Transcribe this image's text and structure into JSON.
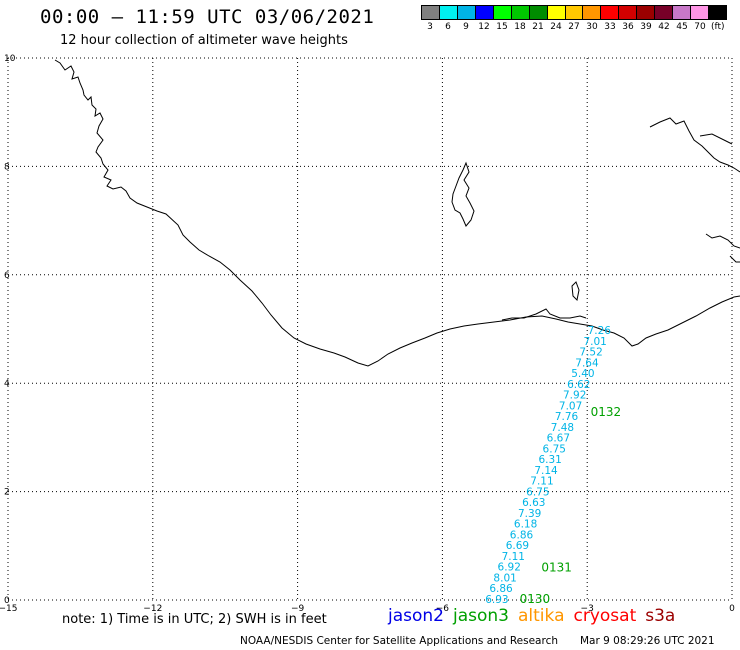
{
  "header": {
    "title": "00:00 – 11:59 UTC 03/06/2021",
    "subtitle": "12 hour collection of altimeter wave heights"
  },
  "legend": {
    "unit": "(ft)",
    "bins": [
      {
        "label": "3",
        "color": "#808080"
      },
      {
        "label": "6",
        "color": "#00f0f0"
      },
      {
        "label": "9",
        "color": "#00b4e6"
      },
      {
        "label": "12",
        "color": "#0000ff"
      },
      {
        "label": "15",
        "color": "#00ff00"
      },
      {
        "label": "18",
        "color": "#00c800"
      },
      {
        "label": "21",
        "color": "#008c00"
      },
      {
        "label": "24",
        "color": "#ffff00"
      },
      {
        "label": "27",
        "color": "#ffc800"
      },
      {
        "label": "30",
        "color": "#ff9600"
      },
      {
        "label": "33",
        "color": "#ff0000"
      },
      {
        "label": "36",
        "color": "#d20000"
      },
      {
        "label": "39",
        "color": "#9b0000"
      },
      {
        "label": "42",
        "color": "#780028"
      },
      {
        "label": "45",
        "color": "#c878c8"
      },
      {
        "label": "70",
        "color": "#ff96e6"
      },
      {
        "label": "",
        "color": "#000000"
      }
    ]
  },
  "axes": {
    "x_ticks": [
      "−15",
      "−12",
      "−9",
      "−6",
      "−3",
      "0"
    ],
    "y_ticks": [
      "10",
      "8",
      "6",
      "4",
      "2",
      "0"
    ],
    "x_range": [
      -15,
      0
    ],
    "y_range": [
      0,
      10
    ]
  },
  "track": {
    "satellite": "jason3",
    "color": "#00b4e6",
    "values": [
      "7.26",
      "7.01",
      "7.52",
      "7.64",
      "5.40",
      "6.62",
      "7.92",
      "7.07",
      "7.76",
      "7.48",
      "6.67",
      "6.75",
      "6.31",
      "7.14",
      "7.11",
      "6.75",
      "6.63",
      "7.39",
      "6.18",
      "6.86",
      "6.69",
      "7.11",
      "6.92",
      "8.01",
      "6.86",
      "6.93"
    ],
    "start": {
      "lon": -2.75,
      "lat": 4.98
    },
    "end": {
      "lon": -4.87,
      "lat": 0.02
    },
    "time_labels": [
      {
        "label": "0132",
        "lon": -2.93,
        "lat": 3.47
      },
      {
        "label": "0131",
        "lon": -3.95,
        "lat": 0.6
      },
      {
        "label": "0130",
        "lon": -4.4,
        "lat": 0.02
      }
    ]
  },
  "footnote": "note: 1) Time is in UTC; 2) SWH is in feet",
  "satellites": [
    {
      "name": "jason2",
      "color": "#0000e6"
    },
    {
      "name": "jason3",
      "color": "#00a000"
    },
    {
      "name": "altika",
      "color": "#ff9600"
    },
    {
      "name": "cryosat",
      "color": "#ff0000"
    },
    {
      "name": "s3a",
      "color": "#9b0000"
    }
  ],
  "credit": {
    "org": "NOAA/NESDIS Center for Satellite Applications and Research",
    "timestamp": "Mar  9 08:29:26 UTC 2021"
  }
}
